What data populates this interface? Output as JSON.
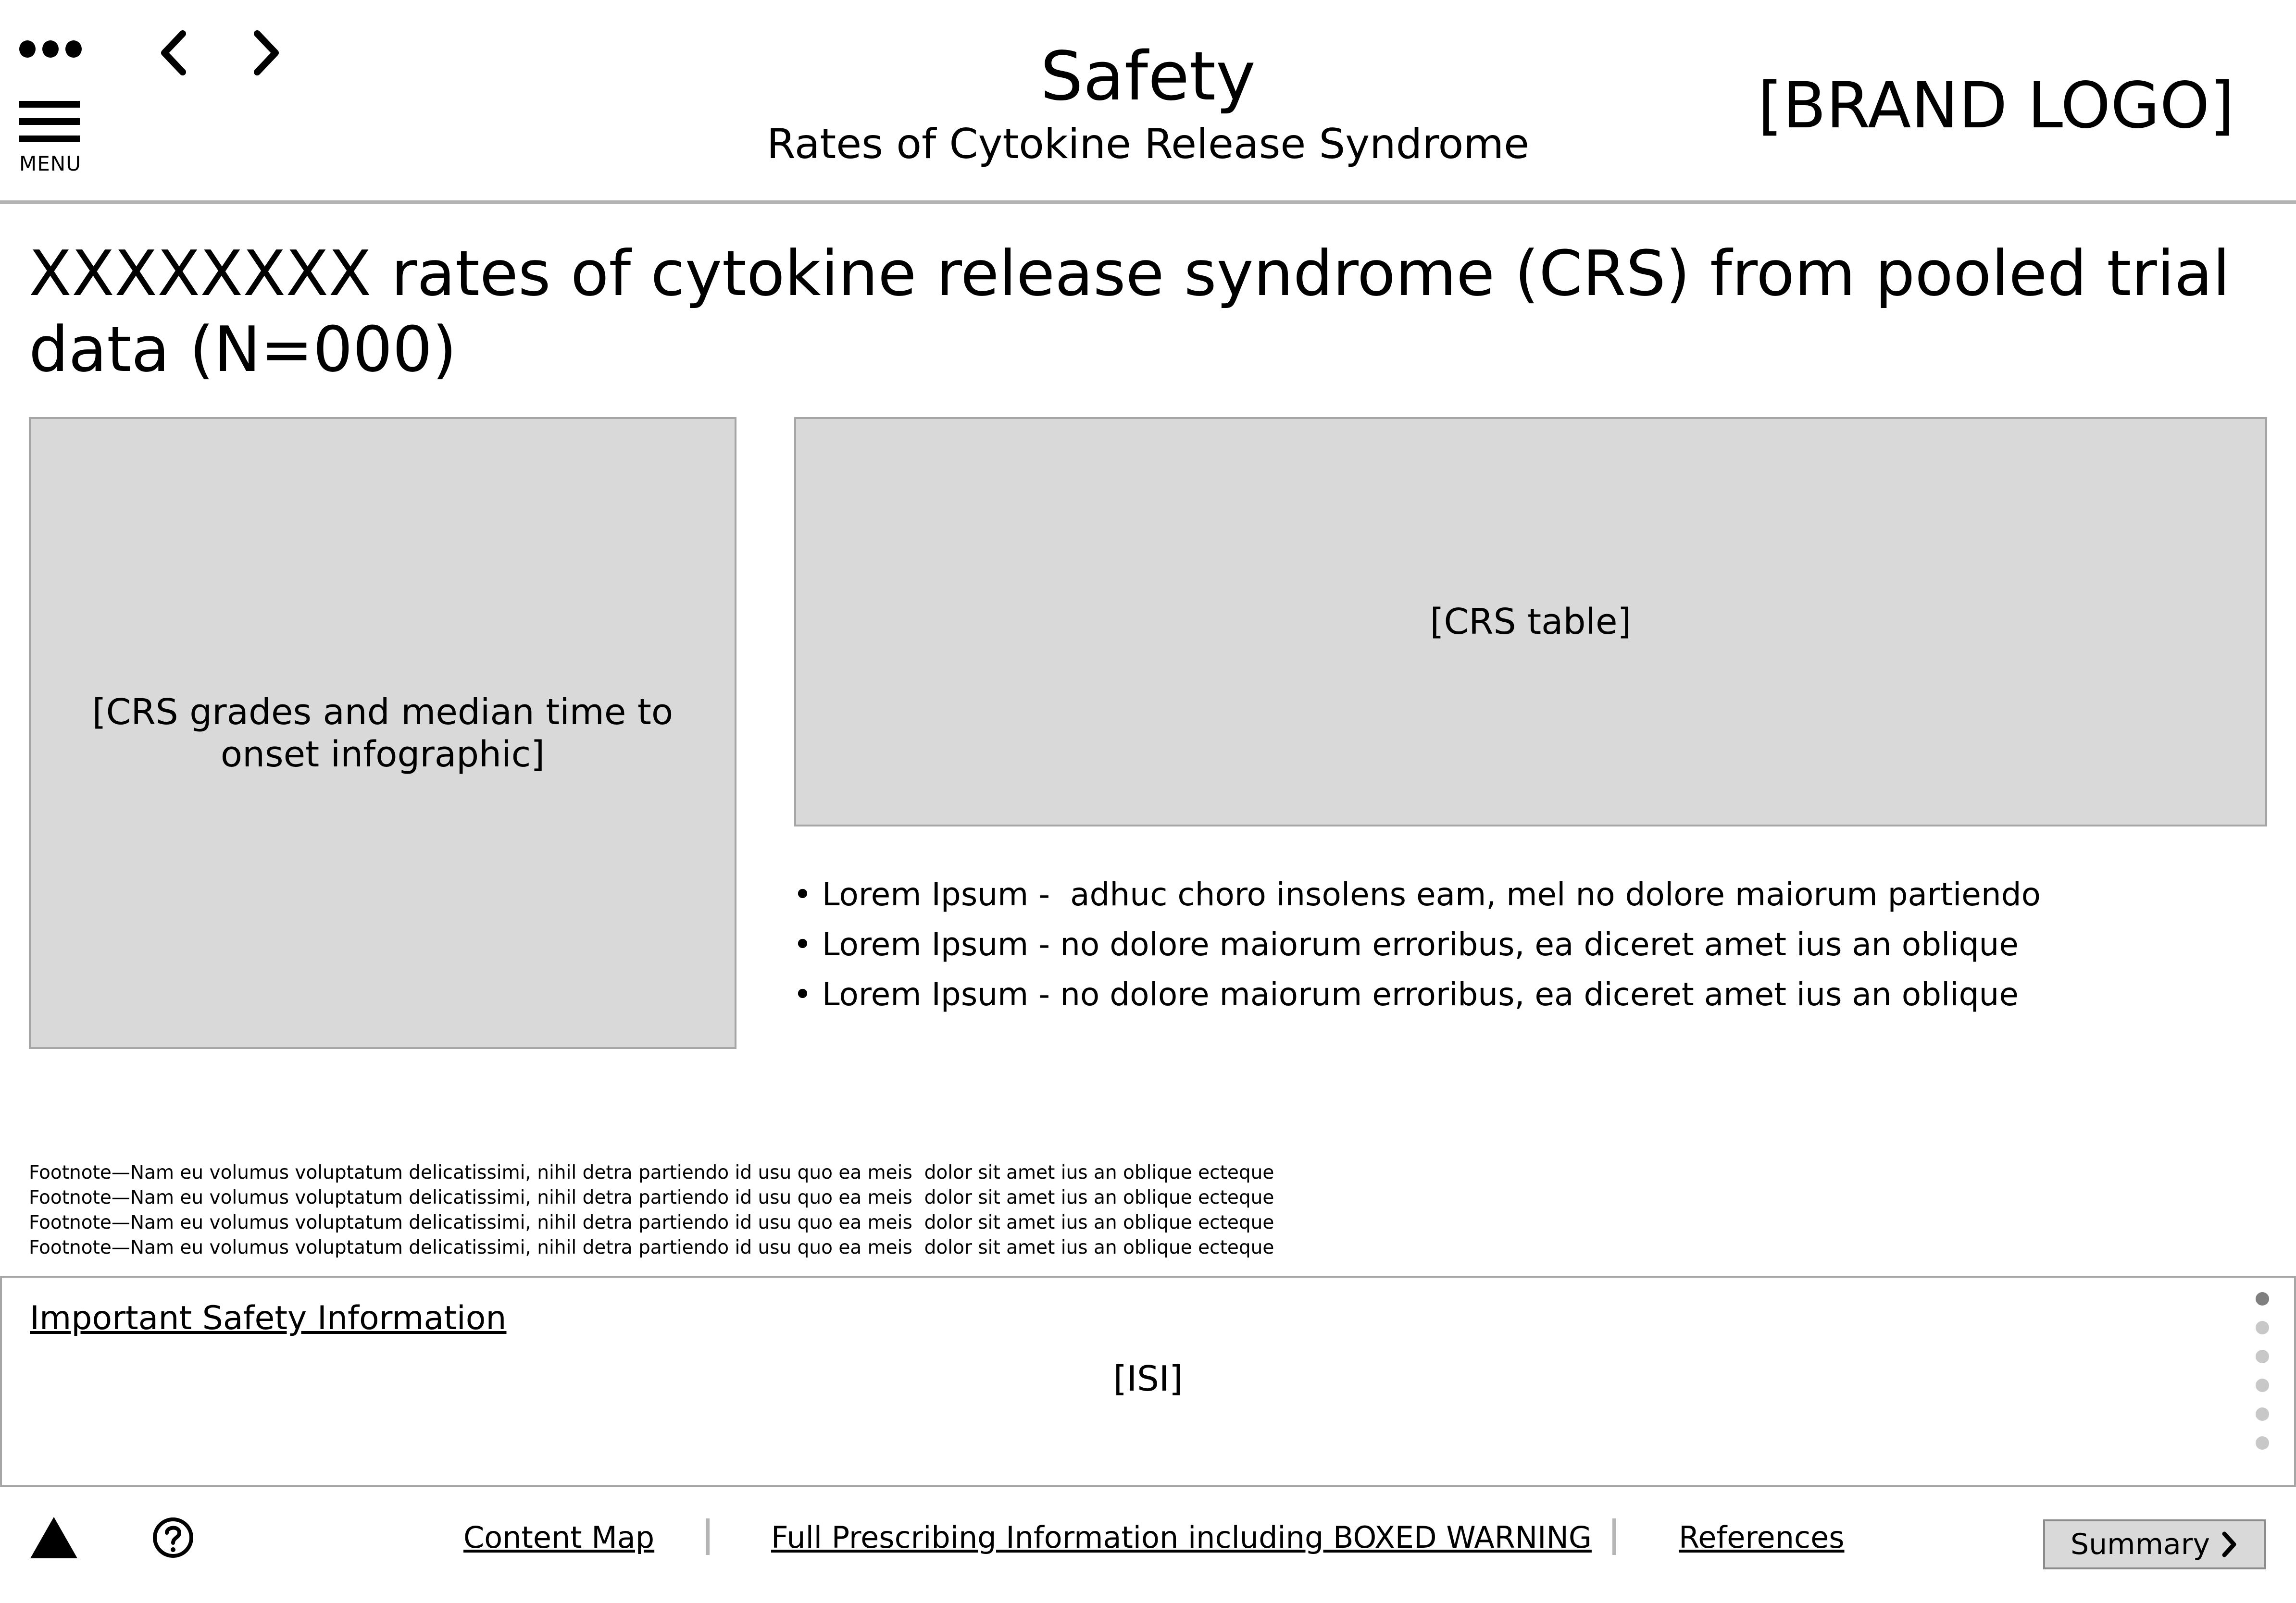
{
  "header": {
    "title": "Safety",
    "subtitle": "Rates of Cytokine Release Syndrome",
    "brand_logo": "[BRAND LOGO]",
    "menu_label": "MENU",
    "icons": [
      "more-dots-icon",
      "back-arrow-icon",
      "forward-arrow-icon",
      "hamburger-menu-icon"
    ]
  },
  "main": {
    "heading": "XXXXXXXX rates of cytokine release syndrome (CRS) from pooled trial data (N=000)",
    "infographic_placeholder": "[CRS grades and median time to onset infographic]",
    "table_placeholder": "[CRS table]",
    "bullets": [
      "• Lorem Ipsum -  adhuc choro insolens eam, mel no dolore maiorum partiendo",
      "• Lorem Ipsum - no dolore maiorum erroribus, ea diceret amet ius an oblique",
      "• Lorem Ipsum - no dolore maiorum erroribus, ea diceret amet ius an oblique"
    ],
    "footnotes": [
      "Footnote—Nam eu volumus voluptatum delicatissimi, nihil detra partiendo id usu quo ea meis  dolor sit amet ius an oblique ecteque",
      "Footnote—Nam eu volumus voluptatum delicatissimi, nihil detra partiendo id usu quo ea meis  dolor sit amet ius an oblique ecteque",
      "Footnote—Nam eu volumus voluptatum delicatissimi, nihil detra partiendo id usu quo ea meis  dolor sit amet ius an oblique ecteque",
      "Footnote—Nam eu volumus voluptatum delicatissimi, nihil detra partiendo id usu quo ea meis  dolor sit amet ius an oblique ecteque"
    ]
  },
  "isi": {
    "link_label": "Important Safety Information",
    "body_placeholder": "[ISI]",
    "page_dots": 6,
    "active_dot": 1
  },
  "footer": {
    "icons": [
      "warning-triangle-icon",
      "help-circle-icon"
    ],
    "links": {
      "content_map": "Content Map",
      "full_prescribing": "Full Prescribing Information including BOXED WARNING",
      "references": "References"
    },
    "summary_label": "Summary"
  },
  "colors": {
    "placeholder_fill": "#d9d9d9",
    "placeholder_border": "#a6a6a6",
    "divider": "#b4b4b4",
    "dot_active": "#7f7f7f",
    "dot_inactive": "#c8c8c8"
  }
}
